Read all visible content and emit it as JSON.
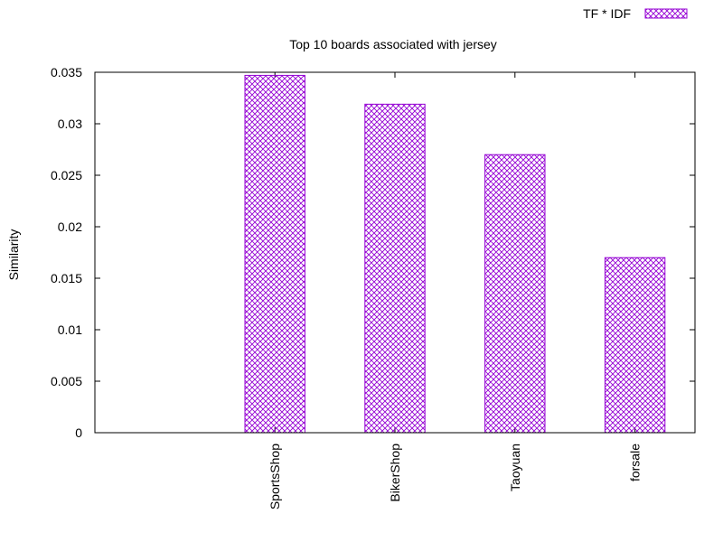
{
  "chart_data": {
    "type": "bar",
    "title": "Top 10 boards associated with jersey",
    "xlabel": "",
    "ylabel": "Similarity",
    "categories": [
      "SportsShop",
      "BikerShop",
      "Taoyuan",
      "forsale"
    ],
    "series": [
      {
        "name": "TF * IDF",
        "values": [
          0.0347,
          0.0319,
          0.027,
          0.017
        ],
        "color": "#9400d3",
        "pattern": "crosshatch"
      }
    ],
    "ylim": [
      0,
      0.035
    ],
    "yticks": [
      0,
      0.005,
      0.01,
      0.015,
      0.02,
      0.025,
      0.03,
      0.035
    ],
    "ytick_labels": [
      "0",
      "0.005",
      "0.01",
      "0.015",
      "0.02",
      "0.025",
      "0.03",
      "0.035"
    ],
    "xlim": [
      -1.5,
      3.5
    ],
    "grid": false,
    "legend_position": "top-right",
    "tick_label_rotation": "vertical"
  }
}
